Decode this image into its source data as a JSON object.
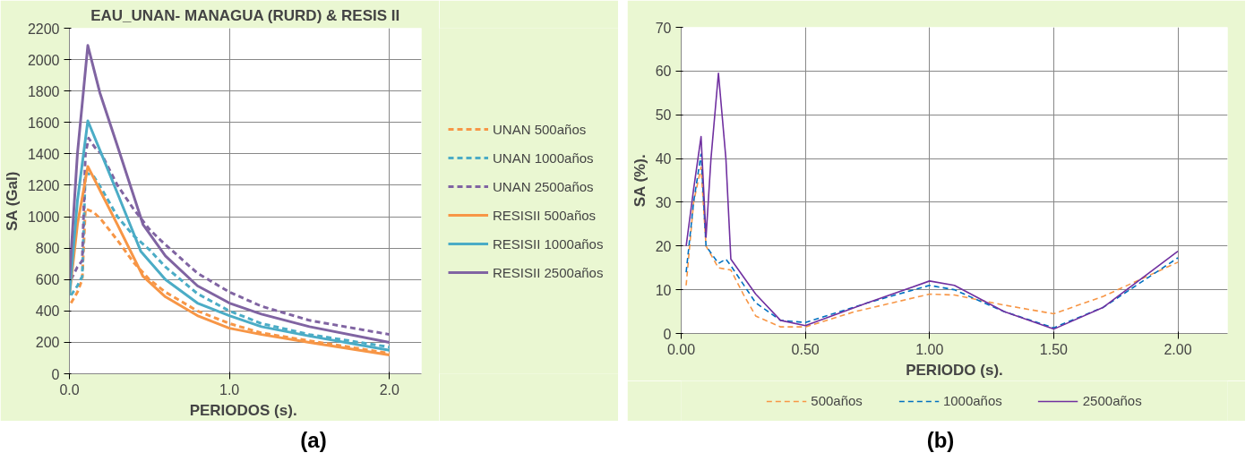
{
  "chart_data": [
    {
      "type": "line",
      "title": "EAU_UNAN- MANAGUA (RURD) & RESIS II",
      "xlabel": "PERIODOS  (s).",
      "ylabel": "SA (Gal)",
      "xlim": [
        0,
        2.2
      ],
      "xticks": [
        {
          "value": 0,
          "label": "0.0"
        },
        {
          "value": 1,
          "label": "1.0"
        },
        {
          "value": 2,
          "label": "2.0"
        }
      ],
      "ylim": [
        0,
        2200
      ],
      "yticks": [
        0,
        200,
        400,
        600,
        800,
        1000,
        1200,
        1400,
        1600,
        1800,
        2000,
        2200
      ],
      "grid": true,
      "legend": "right",
      "annotations": [
        "(a)"
      ],
      "series": [
        {
          "name": "UNAN 500años",
          "color": "#f79646",
          "line_style": "dashed",
          "x": [
            0.01,
            0.05,
            0.08,
            0.1,
            0.15,
            0.2,
            0.3,
            0.4,
            0.5,
            0.6,
            0.8,
            1.0,
            1.2,
            1.5,
            2.0
          ],
          "values": [
            450,
            520,
            600,
            1050,
            1030,
            980,
            850,
            710,
            600,
            520,
            400,
            320,
            260,
            210,
            130
          ]
        },
        {
          "name": "UNAN 1000años",
          "color": "#4bacc6",
          "line_style": "dashed",
          "x": [
            0.01,
            0.05,
            0.08,
            0.1,
            0.15,
            0.2,
            0.3,
            0.4,
            0.5,
            0.6,
            0.8,
            1.0,
            1.2,
            1.5,
            2.0
          ],
          "values": [
            500,
            560,
            620,
            1280,
            1260,
            1180,
            1000,
            880,
            790,
            680,
            510,
            400,
            320,
            250,
            170
          ]
        },
        {
          "name": "UNAN 2500años",
          "color": "#8064a2",
          "line_style": "dashed",
          "x": [
            0.01,
            0.05,
            0.08,
            0.1,
            0.12,
            0.16,
            0.2,
            0.3,
            0.4,
            0.5,
            0.57,
            0.8,
            1.0,
            1.2,
            1.5,
            2.0
          ],
          "values": [
            600,
            680,
            720,
            1400,
            1500,
            1440,
            1400,
            1200,
            1050,
            920,
            850,
            640,
            520,
            430,
            340,
            250
          ]
        },
        {
          "name": "RESISII 500años",
          "color": "#f79646",
          "line_style": "solid",
          "x": [
            0.0,
            0.05,
            0.115,
            0.2,
            0.3,
            0.46,
            0.6,
            0.8,
            1.0,
            1.2,
            1.5,
            2.0
          ],
          "values": [
            500,
            950,
            1320,
            1150,
            950,
            620,
            490,
            370,
            290,
            250,
            200,
            120
          ]
        },
        {
          "name": "RESISII 1000años",
          "color": "#4bacc6",
          "line_style": "solid",
          "x": [
            0.0,
            0.05,
            0.115,
            0.2,
            0.3,
            0.446,
            0.6,
            0.8,
            1.0,
            1.2,
            1.5,
            2.0
          ],
          "values": [
            500,
            1100,
            1610,
            1400,
            1150,
            780,
            600,
            450,
            370,
            300,
            240,
            150
          ]
        },
        {
          "name": "RESISII 2500años",
          "color": "#8064a2",
          "line_style": "solid",
          "x": [
            0.0,
            0.05,
            0.115,
            0.19,
            0.3,
            0.46,
            0.6,
            0.8,
            1.0,
            1.2,
            1.5,
            2.0
          ],
          "values": [
            600,
            1400,
            2090,
            1790,
            1450,
            950,
            750,
            560,
            450,
            380,
            300,
            200
          ]
        }
      ]
    },
    {
      "type": "line",
      "xlabel": "PERIODO (s).",
      "ylabel": "SA (%).",
      "xlim": [
        0,
        2.2
      ],
      "xticks": [
        {
          "value": 0,
          "label": "0.00"
        },
        {
          "value": 0.5,
          "label": "0.50"
        },
        {
          "value": 1,
          "label": "1.00"
        },
        {
          "value": 1.5,
          "label": "1.50"
        },
        {
          "value": 2,
          "label": "2.00"
        }
      ],
      "ylim": [
        0,
        70
      ],
      "yticks": [
        0,
        10,
        20,
        30,
        40,
        50,
        60,
        70
      ],
      "grid": true,
      "legend": "bottom",
      "annotations": [
        "(b)"
      ],
      "series": [
        {
          "name": "500años",
          "color": "#f79646",
          "line_style": "dashed",
          "x": [
            0.02,
            0.05,
            0.08,
            0.1,
            0.15,
            0.2,
            0.25,
            0.3,
            0.4,
            0.5,
            0.7,
            1.0,
            1.1,
            1.3,
            1.5,
            1.7,
            2.0
          ],
          "values": [
            11,
            30,
            38,
            20,
            15,
            14.5,
            9,
            4,
            1.5,
            1.5,
            5,
            9,
            8.8,
            6.5,
            4.5,
            8.5,
            16.3
          ]
        },
        {
          "name": "1000años",
          "color": "#0070c0",
          "line_style": "dashed",
          "x": [
            0.02,
            0.05,
            0.08,
            0.1,
            0.15,
            0.18,
            0.2,
            0.3,
            0.4,
            0.5,
            0.75,
            1.0,
            1.1,
            1.3,
            1.5,
            1.7,
            2.0
          ],
          "values": [
            14,
            30,
            41,
            20,
            16,
            17,
            15.5,
            7,
            3,
            2.5,
            7,
            11,
            10,
            5,
            1.3,
            6,
            17.3
          ]
        },
        {
          "name": "2500años",
          "color": "#7030a0",
          "line_style": "solid",
          "x": [
            0.02,
            0.05,
            0.08,
            0.1,
            0.12,
            0.15,
            0.18,
            0.2,
            0.3,
            0.4,
            0.5,
            0.75,
            1.0,
            1.1,
            1.3,
            1.5,
            1.7,
            2.0
          ],
          "values": [
            20,
            33,
            45,
            22,
            40,
            59.5,
            40,
            17,
            9,
            3,
            1.8,
            7,
            12,
            11,
            5,
            1,
            6,
            18.8
          ]
        }
      ]
    }
  ]
}
